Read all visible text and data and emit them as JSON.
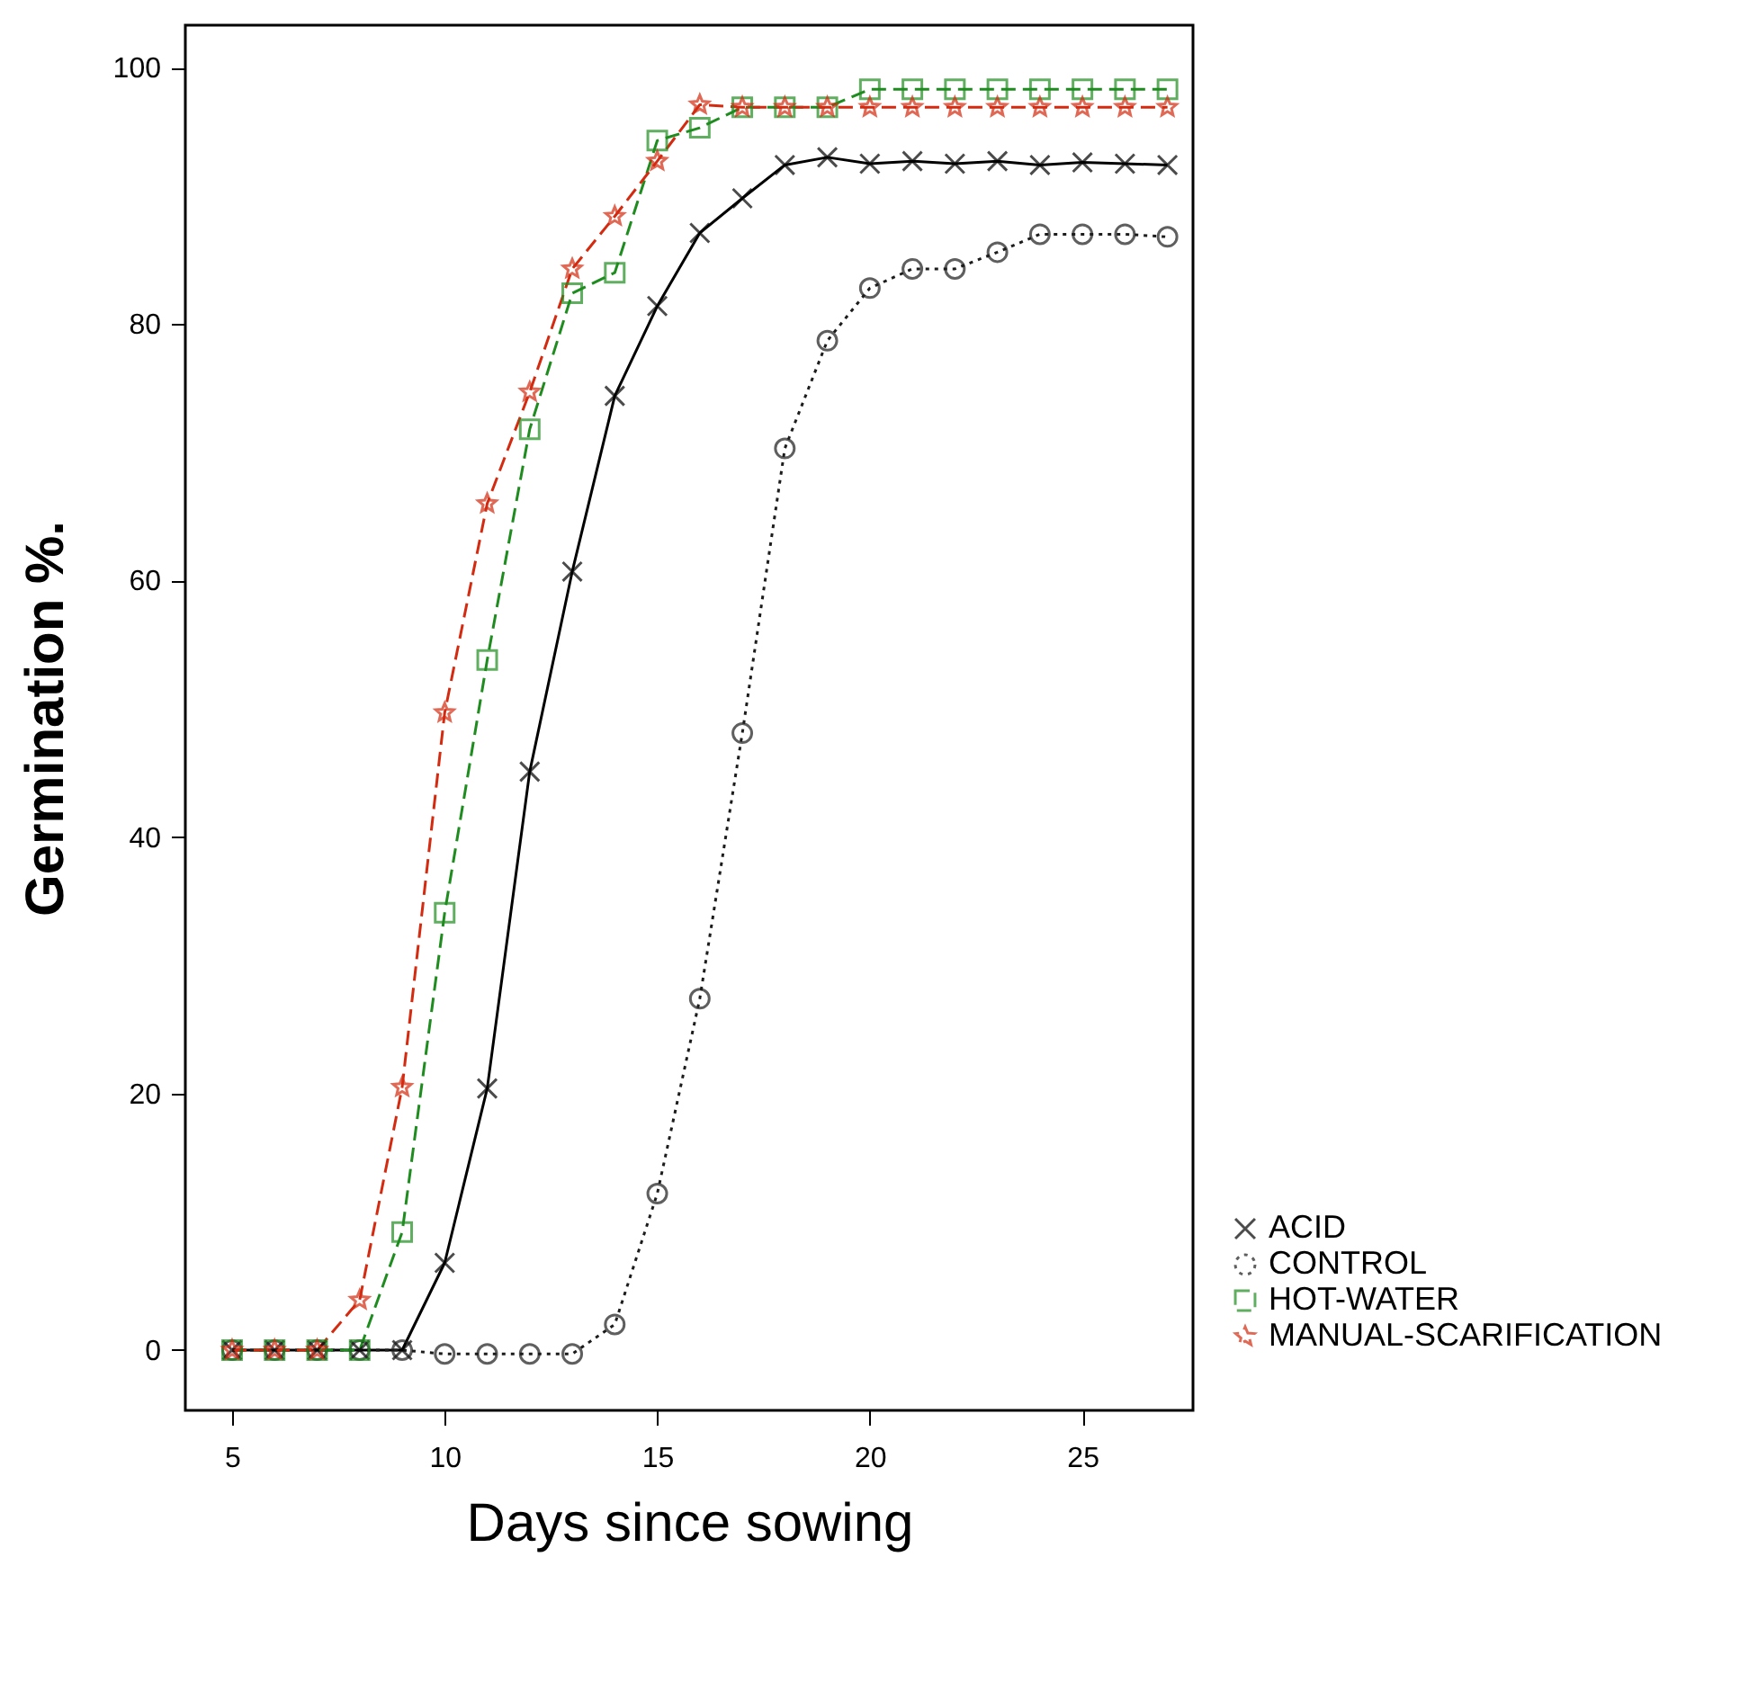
{
  "chart_data": {
    "type": "line",
    "xlabel": "Days since sowing",
    "ylabel": "Germination %.",
    "x": [
      5,
      6,
      7,
      8,
      9,
      10,
      11,
      12,
      13,
      14,
      15,
      16,
      17,
      18,
      19,
      20,
      21,
      22,
      23,
      24,
      25,
      26,
      27
    ],
    "series": [
      {
        "name": "ACID",
        "color": "#000000",
        "marker": "cross",
        "line_style": "solid",
        "values": [
          0,
          0,
          0,
          0,
          0,
          6.8,
          20.4,
          45.1,
          60.7,
          74.4,
          81.4,
          87.1,
          89.8,
          92.4,
          93,
          92.5,
          92.7,
          92.5,
          92.7,
          92.4,
          92.6,
          92.5,
          92.4
        ]
      },
      {
        "name": "CONTROL",
        "color": "#1c1c1c",
        "marker": "circle",
        "line_style": "dotted",
        "values": [
          0,
          0,
          0,
          0,
          0,
          -0.3,
          -0.3,
          -0.3,
          -0.3,
          2,
          12.2,
          27.4,
          48.1,
          70.3,
          78.7,
          82.8,
          84.3,
          84.3,
          85.6,
          87,
          87,
          87,
          86.8
        ]
      },
      {
        "name": "HOT-WATER",
        "color": "#1e8c1e",
        "marker": "square",
        "line_style": "dashed",
        "values": [
          0,
          0,
          0,
          0,
          9.2,
          34.1,
          53.8,
          71.8,
          82.4,
          84,
          94.3,
          95.3,
          96.9,
          96.9,
          96.9,
          98.3,
          98.3,
          98.3,
          98.3,
          98.3,
          98.3,
          98.3,
          98.3
        ]
      },
      {
        "name": "MANUAL-SCARIFICATION",
        "color": "#d42a10",
        "marker": "star",
        "line_style": "dashed",
        "values": [
          0,
          0,
          0,
          3.9,
          20.5,
          49.7,
          66,
          74.7,
          84.3,
          88.4,
          92.7,
          97.1,
          96.9,
          96.9,
          96.9,
          96.9,
          96.9,
          96.9,
          96.9,
          96.9,
          96.9,
          96.9,
          96.9
        ]
      }
    ],
    "xlim": [
      3.9,
      27.6
    ],
    "xticks": [
      5,
      10,
      15,
      20,
      25
    ],
    "ylim": [
      -4.7,
      103.3
    ],
    "yticks": [
      0,
      20,
      40,
      60,
      80,
      100
    ],
    "legend": "bottom right"
  }
}
